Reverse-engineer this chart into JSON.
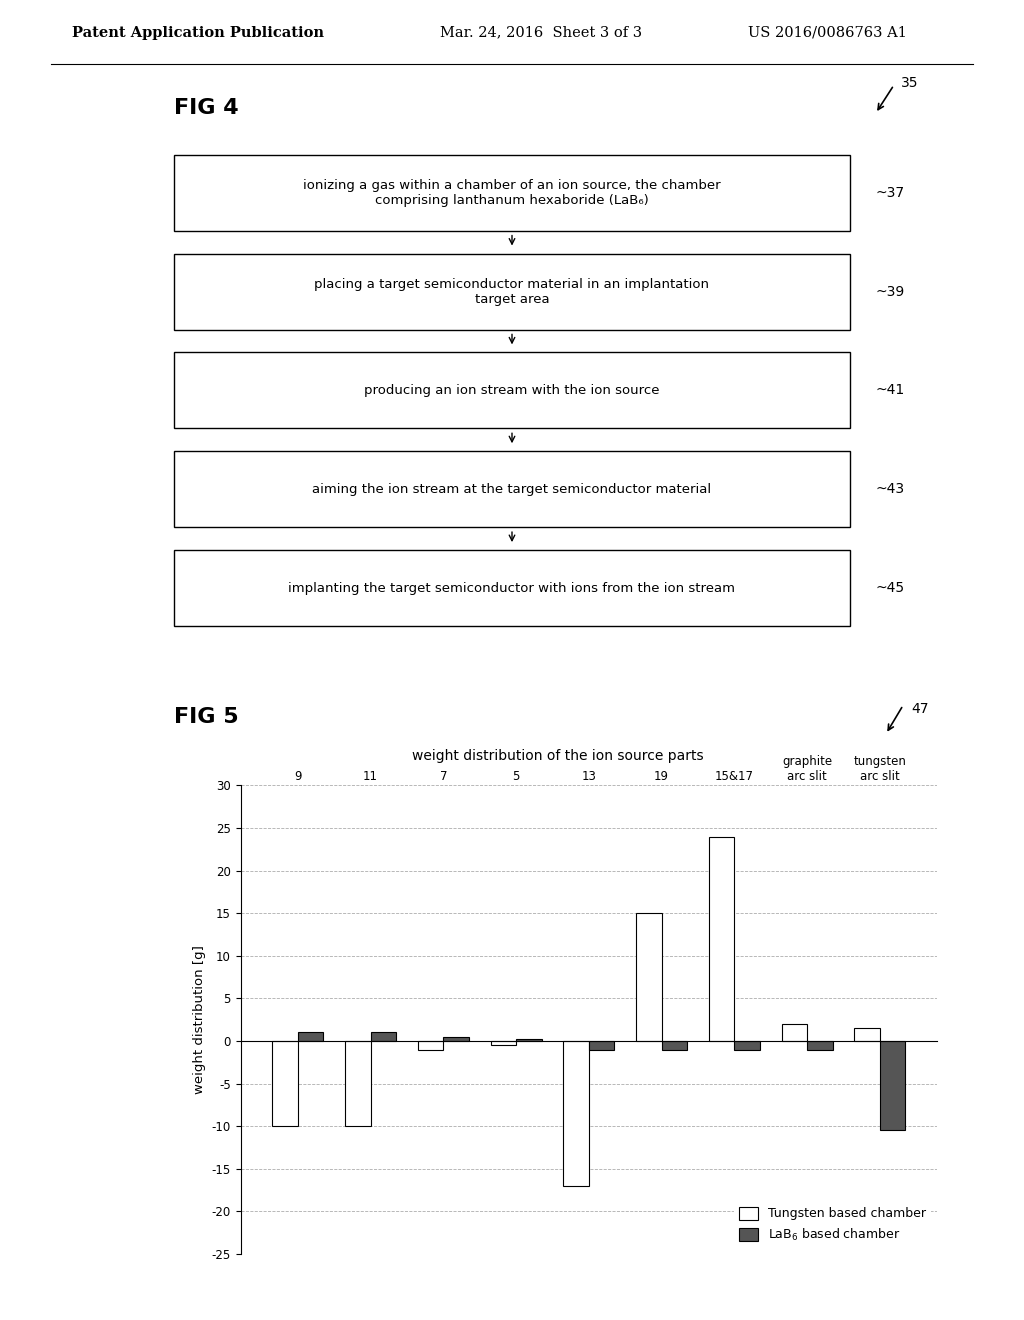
{
  "fig4_title": "FIG 4",
  "fig4_label": "35",
  "fig5_title": "FIG 5",
  "fig5_label": "47",
  "header_left": "Patent Application Publication",
  "header_mid": "Mar. 24, 2016  Sheet 3 of 3",
  "header_right": "US 2016/0086763 A1",
  "flowchart_boxes": [
    "ionizing a gas within a chamber of an ion source, the chamber\ncomprising lanthanum hexaboride (LaB₆)",
    "placing a target semiconductor material in an implantation\ntarget area",
    "producing an ion stream with the ion source",
    "aiming the ion stream at the target semiconductor material",
    "implanting the target semiconductor with ions from the ion stream"
  ],
  "flowchart_labels": [
    "37",
    "39",
    "41",
    "43",
    "45"
  ],
  "bar_categories": [
    "9",
    "11",
    "7",
    "5",
    "13",
    "19",
    "15&17",
    "graphite\narc slit",
    "tungsten\narc slit"
  ],
  "bar_cat_simple": [
    "9",
    "11",
    "7",
    "5",
    "13",
    "19",
    "15&17"
  ],
  "tungsten_values": [
    -10.0,
    -10.0,
    -1.0,
    -0.5,
    -17.0,
    15.0,
    24.0,
    2.0,
    1.5
  ],
  "lab6_values": [
    1.0,
    1.0,
    0.5,
    0.2,
    -1.0,
    -1.0,
    -1.0,
    -1.0,
    -10.5
  ],
  "chart_title": "weight distribution of the ion source parts",
  "ylabel": "weight distribution [g]",
  "ylim": [
    -25,
    30
  ],
  "yticks": [
    -25,
    -20,
    -15,
    -10,
    -5,
    0,
    5,
    10,
    15,
    20,
    25,
    30
  ],
  "bar_width": 0.35,
  "tungsten_color": "white",
  "lab6_color": "#555555",
  "legend_tungsten": "Tungsten based chamber",
  "legend_lab6": "LaB$_6$ based chamber",
  "background_color": "white"
}
